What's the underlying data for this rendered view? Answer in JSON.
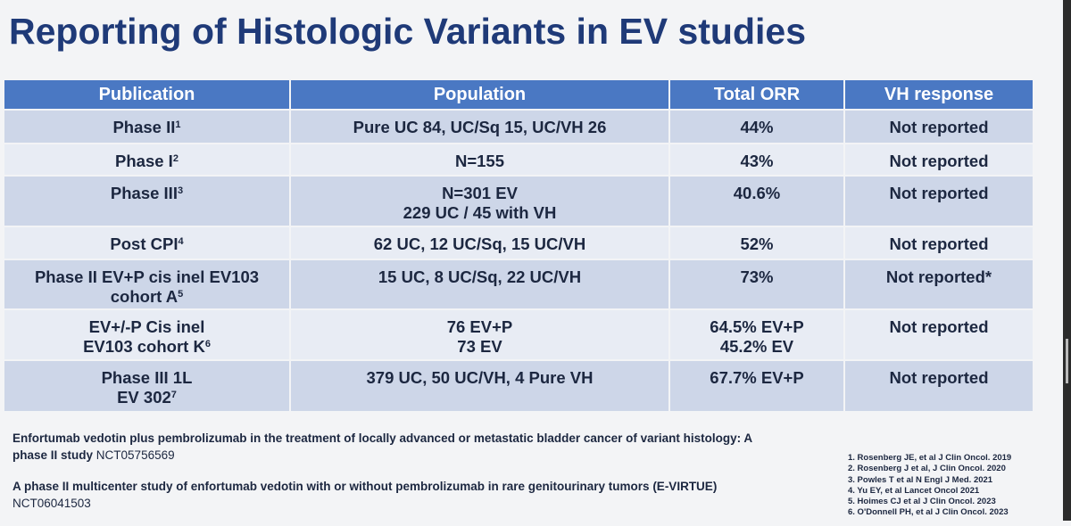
{
  "title": "Reporting of Histologic Variants in EV studies",
  "table": {
    "header": [
      "Publication",
      "Population",
      "Total ORR",
      "VH response"
    ],
    "rows": [
      [
        {
          "lines": [
            "Phase II"
          ],
          "sup": "1"
        },
        {
          "lines": [
            "Pure UC 84, UC/Sq 15, UC/VH 26"
          ]
        },
        {
          "lines": [
            "44%"
          ]
        },
        {
          "lines": [
            "Not reported"
          ]
        }
      ],
      [
        {
          "lines": [
            "Phase I"
          ],
          "sup": "2"
        },
        {
          "lines": [
            "N=155"
          ]
        },
        {
          "lines": [
            "43%"
          ]
        },
        {
          "lines": [
            "Not reported"
          ]
        }
      ],
      [
        {
          "lines": [
            "Phase III"
          ],
          "sup": "3"
        },
        {
          "lines": [
            "N=301 EV",
            "229 UC / 45 with VH"
          ]
        },
        {
          "lines": [
            "40.6%"
          ]
        },
        {
          "lines": [
            "Not reported"
          ]
        }
      ],
      [
        {
          "lines": [
            "Post CPI"
          ],
          "sup": "4"
        },
        {
          "lines": [
            "62 UC, 12 UC/Sq, 15 UC/VH"
          ]
        },
        {
          "lines": [
            "52%"
          ]
        },
        {
          "lines": [
            "Not reported"
          ]
        }
      ],
      [
        {
          "lines": [
            "Phase II EV+P cis inel EV103",
            "cohort A"
          ],
          "sup": "5"
        },
        {
          "lines": [
            "15 UC, 8 UC/Sq, 22 UC/VH"
          ]
        },
        {
          "lines": [
            "73%"
          ]
        },
        {
          "lines": [
            "Not reported*"
          ]
        }
      ],
      [
        {
          "lines": [
            "EV+/-P Cis inel",
            "EV103 cohort K"
          ],
          "sup": "6"
        },
        {
          "lines": [
            "76 EV+P",
            "73 EV"
          ]
        },
        {
          "lines": [
            "64.5% EV+P",
            "45.2% EV"
          ]
        },
        {
          "lines": [
            "Not reported"
          ]
        }
      ],
      [
        {
          "lines": [
            "Phase III 1L",
            "EV 302"
          ],
          "sup": "7"
        },
        {
          "lines": [
            "379 UC, 50 UC/VH, 4 Pure VH"
          ]
        },
        {
          "lines": [
            "67.7% EV+P"
          ]
        },
        {
          "lines": [
            "Not reported"
          ]
        }
      ]
    ]
  },
  "studies": [
    {
      "title": "Enfortumab vedotin plus pembrolizumab in the treatment of locally advanced or metastatic bladder cancer of variant histology: A phase II study",
      "id": "NCT05756569"
    },
    {
      "title": "A phase II multicenter study of enfortumab vedotin with or without pembrolizumab in rare genitourinary tumors (E-VIRTUE)",
      "id": "NCT06041503"
    }
  ],
  "references": [
    "1. Rosenberg JE, et al J Clin Oncol. 2019",
    "2. Rosenberg J et al, J Clin Oncol. 2020",
    "3. Powles T et al N Engl J Med. 2021",
    "4. Yu EY,  et al Lancet Oncol 2021",
    "5. Hoimes CJ et al J Clin Oncol. 2023",
    "6. O'Donnell PH,  et al J Clin Oncol. 2023"
  ]
}
